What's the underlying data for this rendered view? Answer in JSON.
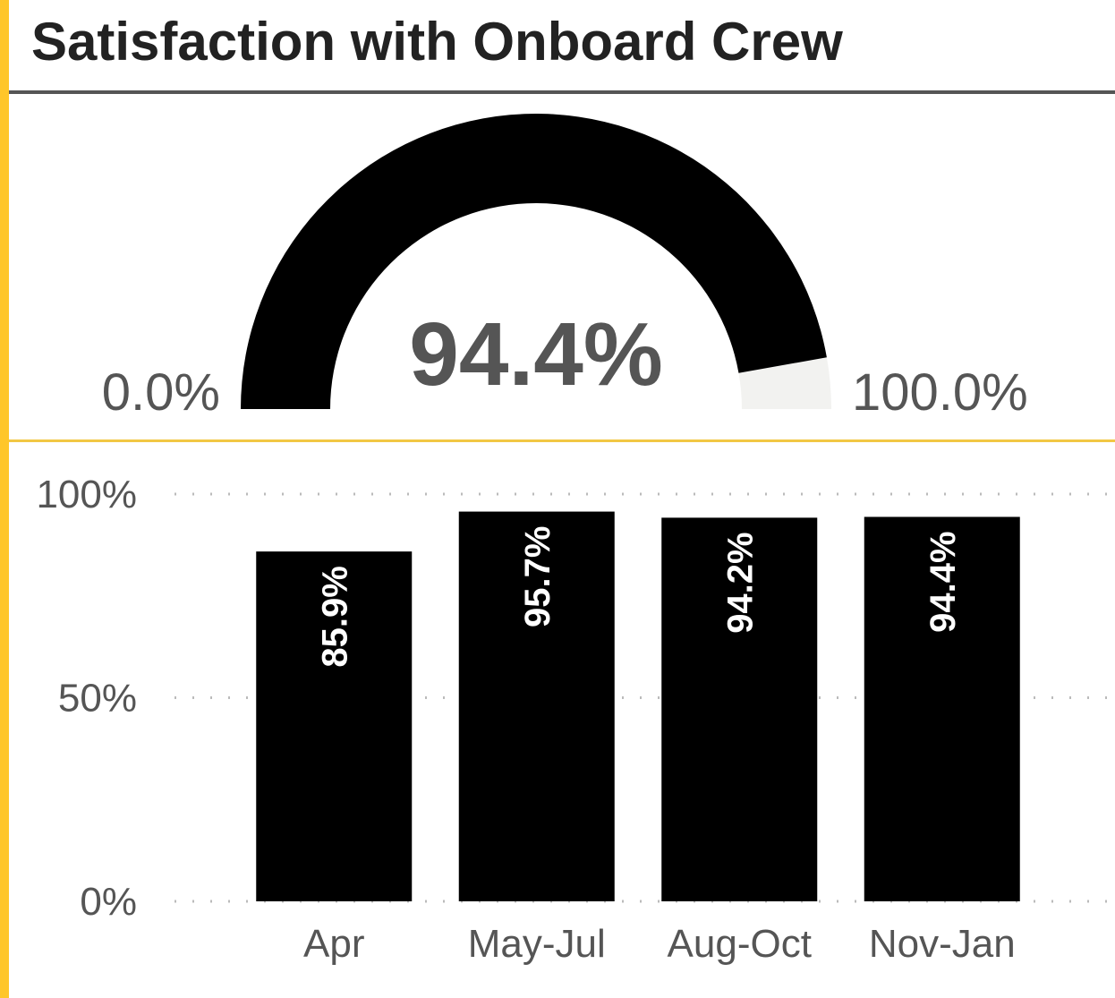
{
  "title": "Satisfaction with Onboard Crew",
  "chart_data": [
    {
      "type": "gauge",
      "values": [
        94.4
      ],
      "value_labels": [
        "94.4%"
      ],
      "color": "#000000",
      "track_color": "#f2f2f0",
      "ylim": [
        0,
        100
      ],
      "yticks": [
        {
          "value": 0,
          "label": "0.0%"
        },
        {
          "value": 100,
          "label": "100.0%"
        }
      ]
    },
    {
      "type": "bar",
      "categories": [
        "Apr",
        "May-Jul",
        "Aug-Oct",
        "Nov-Jan"
      ],
      "values": [
        85.9,
        95.7,
        94.2,
        94.4
      ],
      "value_labels": [
        "85.9%",
        "95.7%",
        "94.2%",
        "94.4%"
      ],
      "color": "#000000",
      "ylim": [
        0,
        100
      ],
      "yticks": [
        {
          "value": 0,
          "label": "0%"
        },
        {
          "value": 50,
          "label": "50%"
        },
        {
          "value": 100,
          "label": "100%"
        }
      ],
      "grid": true
    }
  ]
}
